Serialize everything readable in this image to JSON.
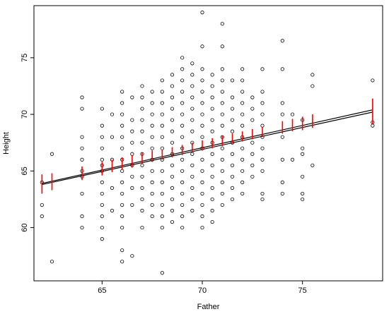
{
  "chart_data": {
    "type": "scatter",
    "title": "",
    "xlabel": "Father",
    "ylabel": "Height",
    "xlim": [
      61.6,
      79.0
    ],
    "ylim": [
      55.3,
      79.6
    ],
    "xticks": [
      65,
      70,
      75
    ],
    "yticks": [
      60,
      65,
      70,
      75
    ],
    "grid": false,
    "legend": "none",
    "colors": {
      "points": "#000000",
      "fit_line": "#000000",
      "error_bars": "#ff0000",
      "axes": "#000000"
    },
    "points": [
      {
        "x": 62.0,
        "y": 64.0
      },
      {
        "x": 62.0,
        "y": 62.0
      },
      {
        "x": 62.0,
        "y": 61.0
      },
      {
        "x": 62.5,
        "y": 66.5
      },
      {
        "x": 62.5,
        "y": 57.0
      },
      {
        "x": 64.0,
        "y": 71.5
      },
      {
        "x": 64.0,
        "y": 70.5
      },
      {
        "x": 64.0,
        "y": 68.0
      },
      {
        "x": 64.0,
        "y": 67.0
      },
      {
        "x": 64.0,
        "y": 66.0
      },
      {
        "x": 64.0,
        "y": 65.0
      },
      {
        "x": 64.0,
        "y": 64.5
      },
      {
        "x": 64.0,
        "y": 63.0
      },
      {
        "x": 64.0,
        "y": 61.0
      },
      {
        "x": 64.0,
        "y": 60.0
      },
      {
        "x": 65.0,
        "y": 70.5
      },
      {
        "x": 65.0,
        "y": 69.0
      },
      {
        "x": 65.0,
        "y": 68.0
      },
      {
        "x": 65.0,
        "y": 67.0
      },
      {
        "x": 65.0,
        "y": 66.0
      },
      {
        "x": 65.0,
        "y": 65.5
      },
      {
        "x": 65.0,
        "y": 65.0
      },
      {
        "x": 65.0,
        "y": 64.0
      },
      {
        "x": 65.0,
        "y": 63.0
      },
      {
        "x": 65.0,
        "y": 62.0
      },
      {
        "x": 65.0,
        "y": 61.0
      },
      {
        "x": 65.0,
        "y": 60.0
      },
      {
        "x": 65.0,
        "y": 59.0
      },
      {
        "x": 65.5,
        "y": 70.0
      },
      {
        "x": 65.5,
        "y": 68.0
      },
      {
        "x": 65.5,
        "y": 66.0
      },
      {
        "x": 65.5,
        "y": 63.5
      },
      {
        "x": 65.5,
        "y": 61.5
      },
      {
        "x": 66.0,
        "y": 72.0
      },
      {
        "x": 66.0,
        "y": 71.0
      },
      {
        "x": 66.0,
        "y": 70.0
      },
      {
        "x": 66.0,
        "y": 69.0
      },
      {
        "x": 66.0,
        "y": 68.0
      },
      {
        "x": 66.0,
        "y": 67.0
      },
      {
        "x": 66.0,
        "y": 66.0
      },
      {
        "x": 66.0,
        "y": 65.0
      },
      {
        "x": 66.0,
        "y": 64.0
      },
      {
        "x": 66.0,
        "y": 63.0
      },
      {
        "x": 66.0,
        "y": 62.0
      },
      {
        "x": 66.0,
        "y": 61.0
      },
      {
        "x": 66.0,
        "y": 60.0
      },
      {
        "x": 66.0,
        "y": 58.0
      },
      {
        "x": 66.0,
        "y": 57.0
      },
      {
        "x": 66.5,
        "y": 71.5
      },
      {
        "x": 66.5,
        "y": 69.5
      },
      {
        "x": 66.5,
        "y": 68.5
      },
      {
        "x": 66.5,
        "y": 67.5
      },
      {
        "x": 66.5,
        "y": 66.5
      },
      {
        "x": 66.5,
        "y": 65.5
      },
      {
        "x": 66.5,
        "y": 64.5
      },
      {
        "x": 66.5,
        "y": 63.5
      },
      {
        "x": 66.5,
        "y": 62.0
      },
      {
        "x": 66.5,
        "y": 57.5
      },
      {
        "x": 67.0,
        "y": 72.5
      },
      {
        "x": 67.0,
        "y": 71.5
      },
      {
        "x": 67.0,
        "y": 70.5
      },
      {
        "x": 67.0,
        "y": 69.5
      },
      {
        "x": 67.0,
        "y": 68.5
      },
      {
        "x": 67.0,
        "y": 67.5
      },
      {
        "x": 67.0,
        "y": 66.5
      },
      {
        "x": 67.0,
        "y": 65.5
      },
      {
        "x": 67.0,
        "y": 64.5
      },
      {
        "x": 67.0,
        "y": 63.5
      },
      {
        "x": 67.0,
        "y": 62.5
      },
      {
        "x": 67.0,
        "y": 61.5
      },
      {
        "x": 67.0,
        "y": 60.0
      },
      {
        "x": 67.5,
        "y": 72.0
      },
      {
        "x": 67.5,
        "y": 71.0
      },
      {
        "x": 67.5,
        "y": 70.0
      },
      {
        "x": 67.5,
        "y": 69.0
      },
      {
        "x": 67.5,
        "y": 68.0
      },
      {
        "x": 67.5,
        "y": 67.0
      },
      {
        "x": 67.5,
        "y": 66.0
      },
      {
        "x": 67.5,
        "y": 65.0
      },
      {
        "x": 67.5,
        "y": 64.0
      },
      {
        "x": 67.5,
        "y": 63.0
      },
      {
        "x": 67.5,
        "y": 62.0
      },
      {
        "x": 67.5,
        "y": 61.0
      },
      {
        "x": 68.0,
        "y": 73.0
      },
      {
        "x": 68.0,
        "y": 72.0
      },
      {
        "x": 68.0,
        "y": 71.0
      },
      {
        "x": 68.0,
        "y": 70.0
      },
      {
        "x": 68.0,
        "y": 69.0
      },
      {
        "x": 68.0,
        "y": 68.0
      },
      {
        "x": 68.0,
        "y": 67.0
      },
      {
        "x": 68.0,
        "y": 66.0
      },
      {
        "x": 68.0,
        "y": 65.0
      },
      {
        "x": 68.0,
        "y": 64.0
      },
      {
        "x": 68.0,
        "y": 63.0
      },
      {
        "x": 68.0,
        "y": 62.0
      },
      {
        "x": 68.0,
        "y": 61.0
      },
      {
        "x": 68.0,
        "y": 60.0
      },
      {
        "x": 68.0,
        "y": 56.0
      },
      {
        "x": 68.5,
        "y": 73.5
      },
      {
        "x": 68.5,
        "y": 72.5
      },
      {
        "x": 68.5,
        "y": 71.5
      },
      {
        "x": 68.5,
        "y": 70.5
      },
      {
        "x": 68.5,
        "y": 69.5
      },
      {
        "x": 68.5,
        "y": 68.5
      },
      {
        "x": 68.5,
        "y": 67.5
      },
      {
        "x": 68.5,
        "y": 66.5
      },
      {
        "x": 68.5,
        "y": 65.5
      },
      {
        "x": 68.5,
        "y": 64.5
      },
      {
        "x": 68.5,
        "y": 63.5
      },
      {
        "x": 68.5,
        "y": 62.5
      },
      {
        "x": 68.5,
        "y": 61.5
      },
      {
        "x": 68.5,
        "y": 60.5
      },
      {
        "x": 69.0,
        "y": 75.0
      },
      {
        "x": 69.0,
        "y": 74.0
      },
      {
        "x": 69.0,
        "y": 73.0
      },
      {
        "x": 69.0,
        "y": 72.0
      },
      {
        "x": 69.0,
        "y": 71.0
      },
      {
        "x": 69.0,
        "y": 70.0
      },
      {
        "x": 69.0,
        "y": 69.0
      },
      {
        "x": 69.0,
        "y": 68.0
      },
      {
        "x": 69.0,
        "y": 67.0
      },
      {
        "x": 69.0,
        "y": 66.0
      },
      {
        "x": 69.0,
        "y": 65.0
      },
      {
        "x": 69.0,
        "y": 64.0
      },
      {
        "x": 69.0,
        "y": 63.0
      },
      {
        "x": 69.0,
        "y": 62.0
      },
      {
        "x": 69.0,
        "y": 61.0
      },
      {
        "x": 69.0,
        "y": 60.0
      },
      {
        "x": 69.5,
        "y": 74.5
      },
      {
        "x": 69.5,
        "y": 73.5
      },
      {
        "x": 69.5,
        "y": 72.5
      },
      {
        "x": 69.5,
        "y": 71.5
      },
      {
        "x": 69.5,
        "y": 70.5
      },
      {
        "x": 69.5,
        "y": 69.5
      },
      {
        "x": 69.5,
        "y": 68.5
      },
      {
        "x": 69.5,
        "y": 67.5
      },
      {
        "x": 69.5,
        "y": 66.5
      },
      {
        "x": 69.5,
        "y": 65.5
      },
      {
        "x": 69.5,
        "y": 64.5
      },
      {
        "x": 69.5,
        "y": 63.5
      },
      {
        "x": 69.5,
        "y": 62.5
      },
      {
        "x": 69.5,
        "y": 61.5
      },
      {
        "x": 70.0,
        "y": 79.0
      },
      {
        "x": 70.0,
        "y": 76.0
      },
      {
        "x": 70.0,
        "y": 74.0
      },
      {
        "x": 70.0,
        "y": 73.0
      },
      {
        "x": 70.0,
        "y": 72.0
      },
      {
        "x": 70.0,
        "y": 71.0
      },
      {
        "x": 70.0,
        "y": 70.0
      },
      {
        "x": 70.0,
        "y": 69.0
      },
      {
        "x": 70.0,
        "y": 68.0
      },
      {
        "x": 70.0,
        "y": 67.0
      },
      {
        "x": 70.0,
        "y": 66.0
      },
      {
        "x": 70.0,
        "y": 65.0
      },
      {
        "x": 70.0,
        "y": 64.0
      },
      {
        "x": 70.0,
        "y": 63.0
      },
      {
        "x": 70.0,
        "y": 62.0
      },
      {
        "x": 70.0,
        "y": 61.0
      },
      {
        "x": 70.0,
        "y": 60.0
      },
      {
        "x": 70.5,
        "y": 73.5
      },
      {
        "x": 70.5,
        "y": 72.5
      },
      {
        "x": 70.5,
        "y": 71.5
      },
      {
        "x": 70.5,
        "y": 70.5
      },
      {
        "x": 70.5,
        "y": 69.5
      },
      {
        "x": 70.5,
        "y": 68.5
      },
      {
        "x": 70.5,
        "y": 67.5
      },
      {
        "x": 70.5,
        "y": 66.5
      },
      {
        "x": 70.5,
        "y": 65.5
      },
      {
        "x": 70.5,
        "y": 64.5
      },
      {
        "x": 70.5,
        "y": 63.5
      },
      {
        "x": 70.5,
        "y": 62.5
      },
      {
        "x": 70.5,
        "y": 61.5
      },
      {
        "x": 70.5,
        "y": 60.5
      },
      {
        "x": 71.0,
        "y": 78.0
      },
      {
        "x": 71.0,
        "y": 76.0
      },
      {
        "x": 71.0,
        "y": 74.0
      },
      {
        "x": 71.0,
        "y": 73.0
      },
      {
        "x": 71.0,
        "y": 72.0
      },
      {
        "x": 71.0,
        "y": 71.0
      },
      {
        "x": 71.0,
        "y": 70.0
      },
      {
        "x": 71.0,
        "y": 69.0
      },
      {
        "x": 71.0,
        "y": 68.0
      },
      {
        "x": 71.0,
        "y": 67.0
      },
      {
        "x": 71.0,
        "y": 66.0
      },
      {
        "x": 71.0,
        "y": 65.0
      },
      {
        "x": 71.0,
        "y": 64.0
      },
      {
        "x": 71.0,
        "y": 63.0
      },
      {
        "x": 71.0,
        "y": 62.0
      },
      {
        "x": 71.5,
        "y": 73.0
      },
      {
        "x": 71.5,
        "y": 71.5
      },
      {
        "x": 71.5,
        "y": 70.5
      },
      {
        "x": 71.5,
        "y": 69.5
      },
      {
        "x": 71.5,
        "y": 68.5
      },
      {
        "x": 71.5,
        "y": 67.5
      },
      {
        "x": 71.5,
        "y": 66.5
      },
      {
        "x": 71.5,
        "y": 65.5
      },
      {
        "x": 71.5,
        "y": 64.5
      },
      {
        "x": 71.5,
        "y": 63.5
      },
      {
        "x": 71.5,
        "y": 62.5
      },
      {
        "x": 72.0,
        "y": 74.0
      },
      {
        "x": 72.0,
        "y": 73.0
      },
      {
        "x": 72.0,
        "y": 72.0
      },
      {
        "x": 72.0,
        "y": 71.0
      },
      {
        "x": 72.0,
        "y": 70.0
      },
      {
        "x": 72.0,
        "y": 69.0
      },
      {
        "x": 72.0,
        "y": 68.0
      },
      {
        "x": 72.0,
        "y": 67.0
      },
      {
        "x": 72.0,
        "y": 66.0
      },
      {
        "x": 72.0,
        "y": 65.0
      },
      {
        "x": 72.0,
        "y": 64.0
      },
      {
        "x": 72.0,
        "y": 63.0
      },
      {
        "x": 72.5,
        "y": 71.5
      },
      {
        "x": 72.5,
        "y": 70.5
      },
      {
        "x": 72.5,
        "y": 69.5
      },
      {
        "x": 72.5,
        "y": 67.5
      },
      {
        "x": 72.5,
        "y": 66.5
      },
      {
        "x": 72.5,
        "y": 65.5
      },
      {
        "x": 72.5,
        "y": 64.5
      },
      {
        "x": 73.0,
        "y": 74.0
      },
      {
        "x": 73.0,
        "y": 72.0
      },
      {
        "x": 73.0,
        "y": 71.0
      },
      {
        "x": 73.0,
        "y": 70.0
      },
      {
        "x": 73.0,
        "y": 69.0
      },
      {
        "x": 73.0,
        "y": 68.0
      },
      {
        "x": 73.0,
        "y": 67.0
      },
      {
        "x": 73.0,
        "y": 66.0
      },
      {
        "x": 73.0,
        "y": 65.0
      },
      {
        "x": 73.0,
        "y": 63.0
      },
      {
        "x": 73.0,
        "y": 62.5
      },
      {
        "x": 74.0,
        "y": 76.5
      },
      {
        "x": 74.0,
        "y": 74.0
      },
      {
        "x": 74.0,
        "y": 71.0
      },
      {
        "x": 74.0,
        "y": 70.0
      },
      {
        "x": 74.0,
        "y": 68.0
      },
      {
        "x": 74.0,
        "y": 66.0
      },
      {
        "x": 74.0,
        "y": 64.0
      },
      {
        "x": 74.0,
        "y": 63.0
      },
      {
        "x": 74.5,
        "y": 70.0
      },
      {
        "x": 74.5,
        "y": 66.0
      },
      {
        "x": 75.0,
        "y": 69.5
      },
      {
        "x": 75.0,
        "y": 67.0
      },
      {
        "x": 75.0,
        "y": 66.5
      },
      {
        "x": 75.0,
        "y": 64.5
      },
      {
        "x": 75.0,
        "y": 63.0
      },
      {
        "x": 75.0,
        "y": 62.5
      },
      {
        "x": 75.5,
        "y": 73.5
      },
      {
        "x": 75.5,
        "y": 72.5
      },
      {
        "x": 75.5,
        "y": 65.5
      },
      {
        "x": 78.5,
        "y": 73.0
      },
      {
        "x": 78.5,
        "y": 69.0
      },
      {
        "x": 78.5,
        "y": 69.3
      }
    ],
    "fit_lines": [
      {
        "x": [
          62.0,
          78.5
        ],
        "y": [
          63.8,
          70.2
        ]
      },
      {
        "x": [
          62.0,
          78.5
        ],
        "y": [
          63.9,
          70.4
        ]
      }
    ],
    "error_bars": [
      {
        "x": 62.0,
        "low": 63.0,
        "high": 64.7
      },
      {
        "x": 62.5,
        "low": 63.3,
        "high": 64.8
      },
      {
        "x": 64.0,
        "low": 64.2,
        "high": 65.4
      },
      {
        "x": 65.0,
        "low": 64.6,
        "high": 65.8
      },
      {
        "x": 65.5,
        "low": 64.9,
        "high": 66.0
      },
      {
        "x": 66.0,
        "low": 65.1,
        "high": 66.2
      },
      {
        "x": 66.5,
        "low": 65.3,
        "high": 66.4
      },
      {
        "x": 67.0,
        "low": 65.6,
        "high": 66.6
      },
      {
        "x": 67.5,
        "low": 65.8,
        "high": 66.8
      },
      {
        "x": 68.0,
        "low": 66.0,
        "high": 66.9
      },
      {
        "x": 68.5,
        "low": 66.2,
        "high": 67.1
      },
      {
        "x": 69.0,
        "low": 66.4,
        "high": 67.3
      },
      {
        "x": 69.5,
        "low": 66.6,
        "high": 67.5
      },
      {
        "x": 70.0,
        "low": 66.8,
        "high": 67.7
      },
      {
        "x": 70.5,
        "low": 67.0,
        "high": 67.9
      },
      {
        "x": 71.0,
        "low": 67.2,
        "high": 68.1
      },
      {
        "x": 71.5,
        "low": 67.4,
        "high": 68.3
      },
      {
        "x": 72.0,
        "low": 67.6,
        "high": 68.5
      },
      {
        "x": 72.5,
        "low": 67.8,
        "high": 68.7
      },
      {
        "x": 73.0,
        "low": 68.0,
        "high": 68.9
      },
      {
        "x": 74.0,
        "low": 68.3,
        "high": 69.4
      },
      {
        "x": 74.5,
        "low": 68.5,
        "high": 69.6
      },
      {
        "x": 75.0,
        "low": 68.6,
        "high": 69.8
      },
      {
        "x": 75.5,
        "low": 68.8,
        "high": 70.0
      },
      {
        "x": 78.5,
        "low": 69.1,
        "high": 71.4
      }
    ]
  }
}
